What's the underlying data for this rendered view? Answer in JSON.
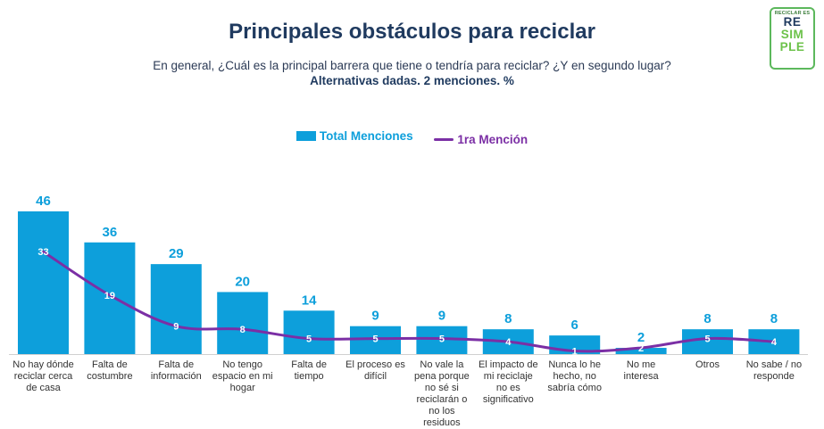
{
  "title": "Principales obstáculos para reciclar",
  "subtitle": "En general, ¿Cuál es la principal barrera que tiene o tendría para reciclar? ¿Y en segundo lugar?",
  "note": "Alternativas dadas. 2 menciones. %",
  "logo": {
    "top": "RECICLAR ES",
    "line1": "RE",
    "line2": "SIM",
    "line3": "PLE"
  },
  "legend": {
    "bar": "Total Menciones",
    "line": "1ra Mención"
  },
  "colors": {
    "bar": "#0d9fdb",
    "line": "#7b2fa5",
    "title": "#1f3a5f"
  },
  "chart_data": {
    "type": "bar",
    "title": "Principales obstáculos para reciclar",
    "xlabel": "",
    "ylabel": "%",
    "ylim": [
      0,
      50
    ],
    "categories": [
      "No hay dónde reciclar cerca de casa",
      "Falta de costumbre",
      "Falta de información",
      "No tengo espacio en mi hogar",
      "Falta de tiempo",
      "El proceso es difícil",
      "No vale la pena porque no sé si reciclarán o no los residuos",
      "El impacto de mi reciclaje no es significativo",
      "Nunca lo he hecho, no sabría cómo",
      "No me interesa",
      "Otros",
      "No sabe / no responde"
    ],
    "series": [
      {
        "name": "Total Menciones",
        "type": "bar",
        "values": [
          46,
          36,
          29,
          20,
          14,
          9,
          9,
          8,
          6,
          2,
          8,
          8
        ]
      },
      {
        "name": "1ra Mención",
        "type": "line",
        "values": [
          33,
          19,
          9,
          8,
          5,
          5,
          5,
          4,
          1,
          2,
          5,
          4
        ]
      }
    ]
  }
}
